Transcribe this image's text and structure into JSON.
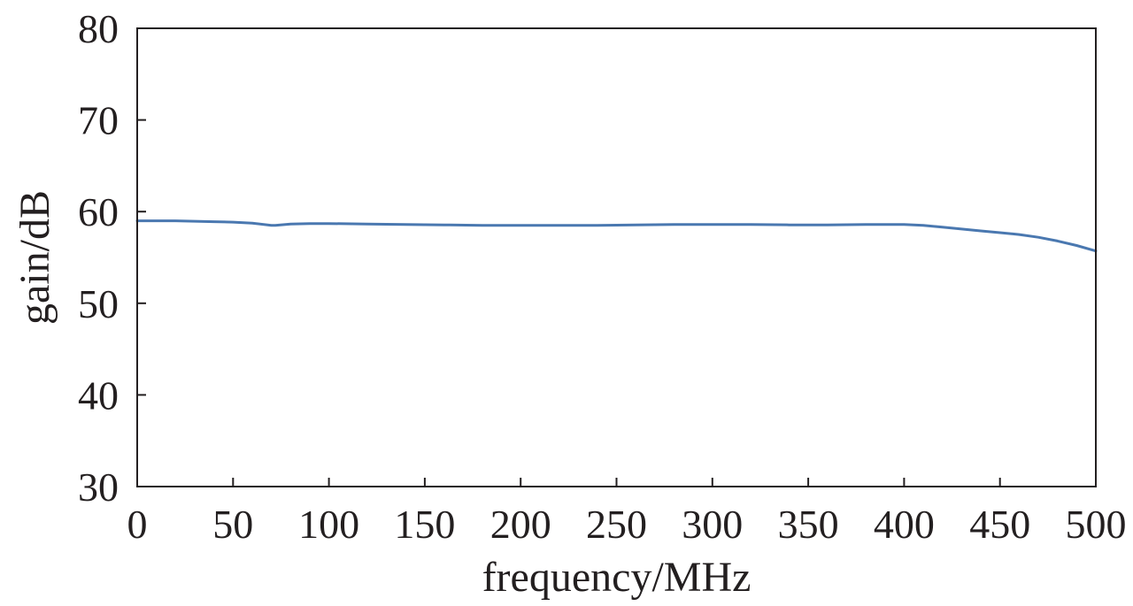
{
  "chart_data": {
    "type": "line",
    "title": "",
    "xlabel": "frequency/MHz",
    "ylabel": "gain/dB",
    "xlim": [
      0,
      500
    ],
    "ylim": [
      30,
      80
    ],
    "xticks": [
      "0",
      "50",
      "100",
      "150",
      "200",
      "250",
      "300",
      "350",
      "400",
      "450",
      "500"
    ],
    "yticks": [
      "30",
      "40",
      "50",
      "60",
      "70",
      "80"
    ],
    "grid": false,
    "legend": "none",
    "series": [
      {
        "color": "#4a78b0",
        "x": [
          0,
          10,
          20,
          30,
          40,
          50,
          60,
          70,
          72,
          80,
          90,
          100,
          120,
          140,
          160,
          180,
          200,
          220,
          240,
          260,
          280,
          300,
          320,
          340,
          360,
          380,
          400,
          410,
          420,
          430,
          440,
          450,
          460,
          470,
          480,
          490,
          500
        ],
        "y": [
          59.0,
          59.0,
          59.0,
          58.95,
          58.9,
          58.85,
          58.75,
          58.5,
          58.5,
          58.65,
          58.7,
          58.7,
          58.65,
          58.6,
          58.55,
          58.5,
          58.5,
          58.5,
          58.5,
          58.55,
          58.6,
          58.6,
          58.6,
          58.55,
          58.55,
          58.6,
          58.6,
          58.5,
          58.3,
          58.1,
          57.9,
          57.7,
          57.5,
          57.2,
          56.8,
          56.3,
          55.7
        ]
      }
    ]
  }
}
